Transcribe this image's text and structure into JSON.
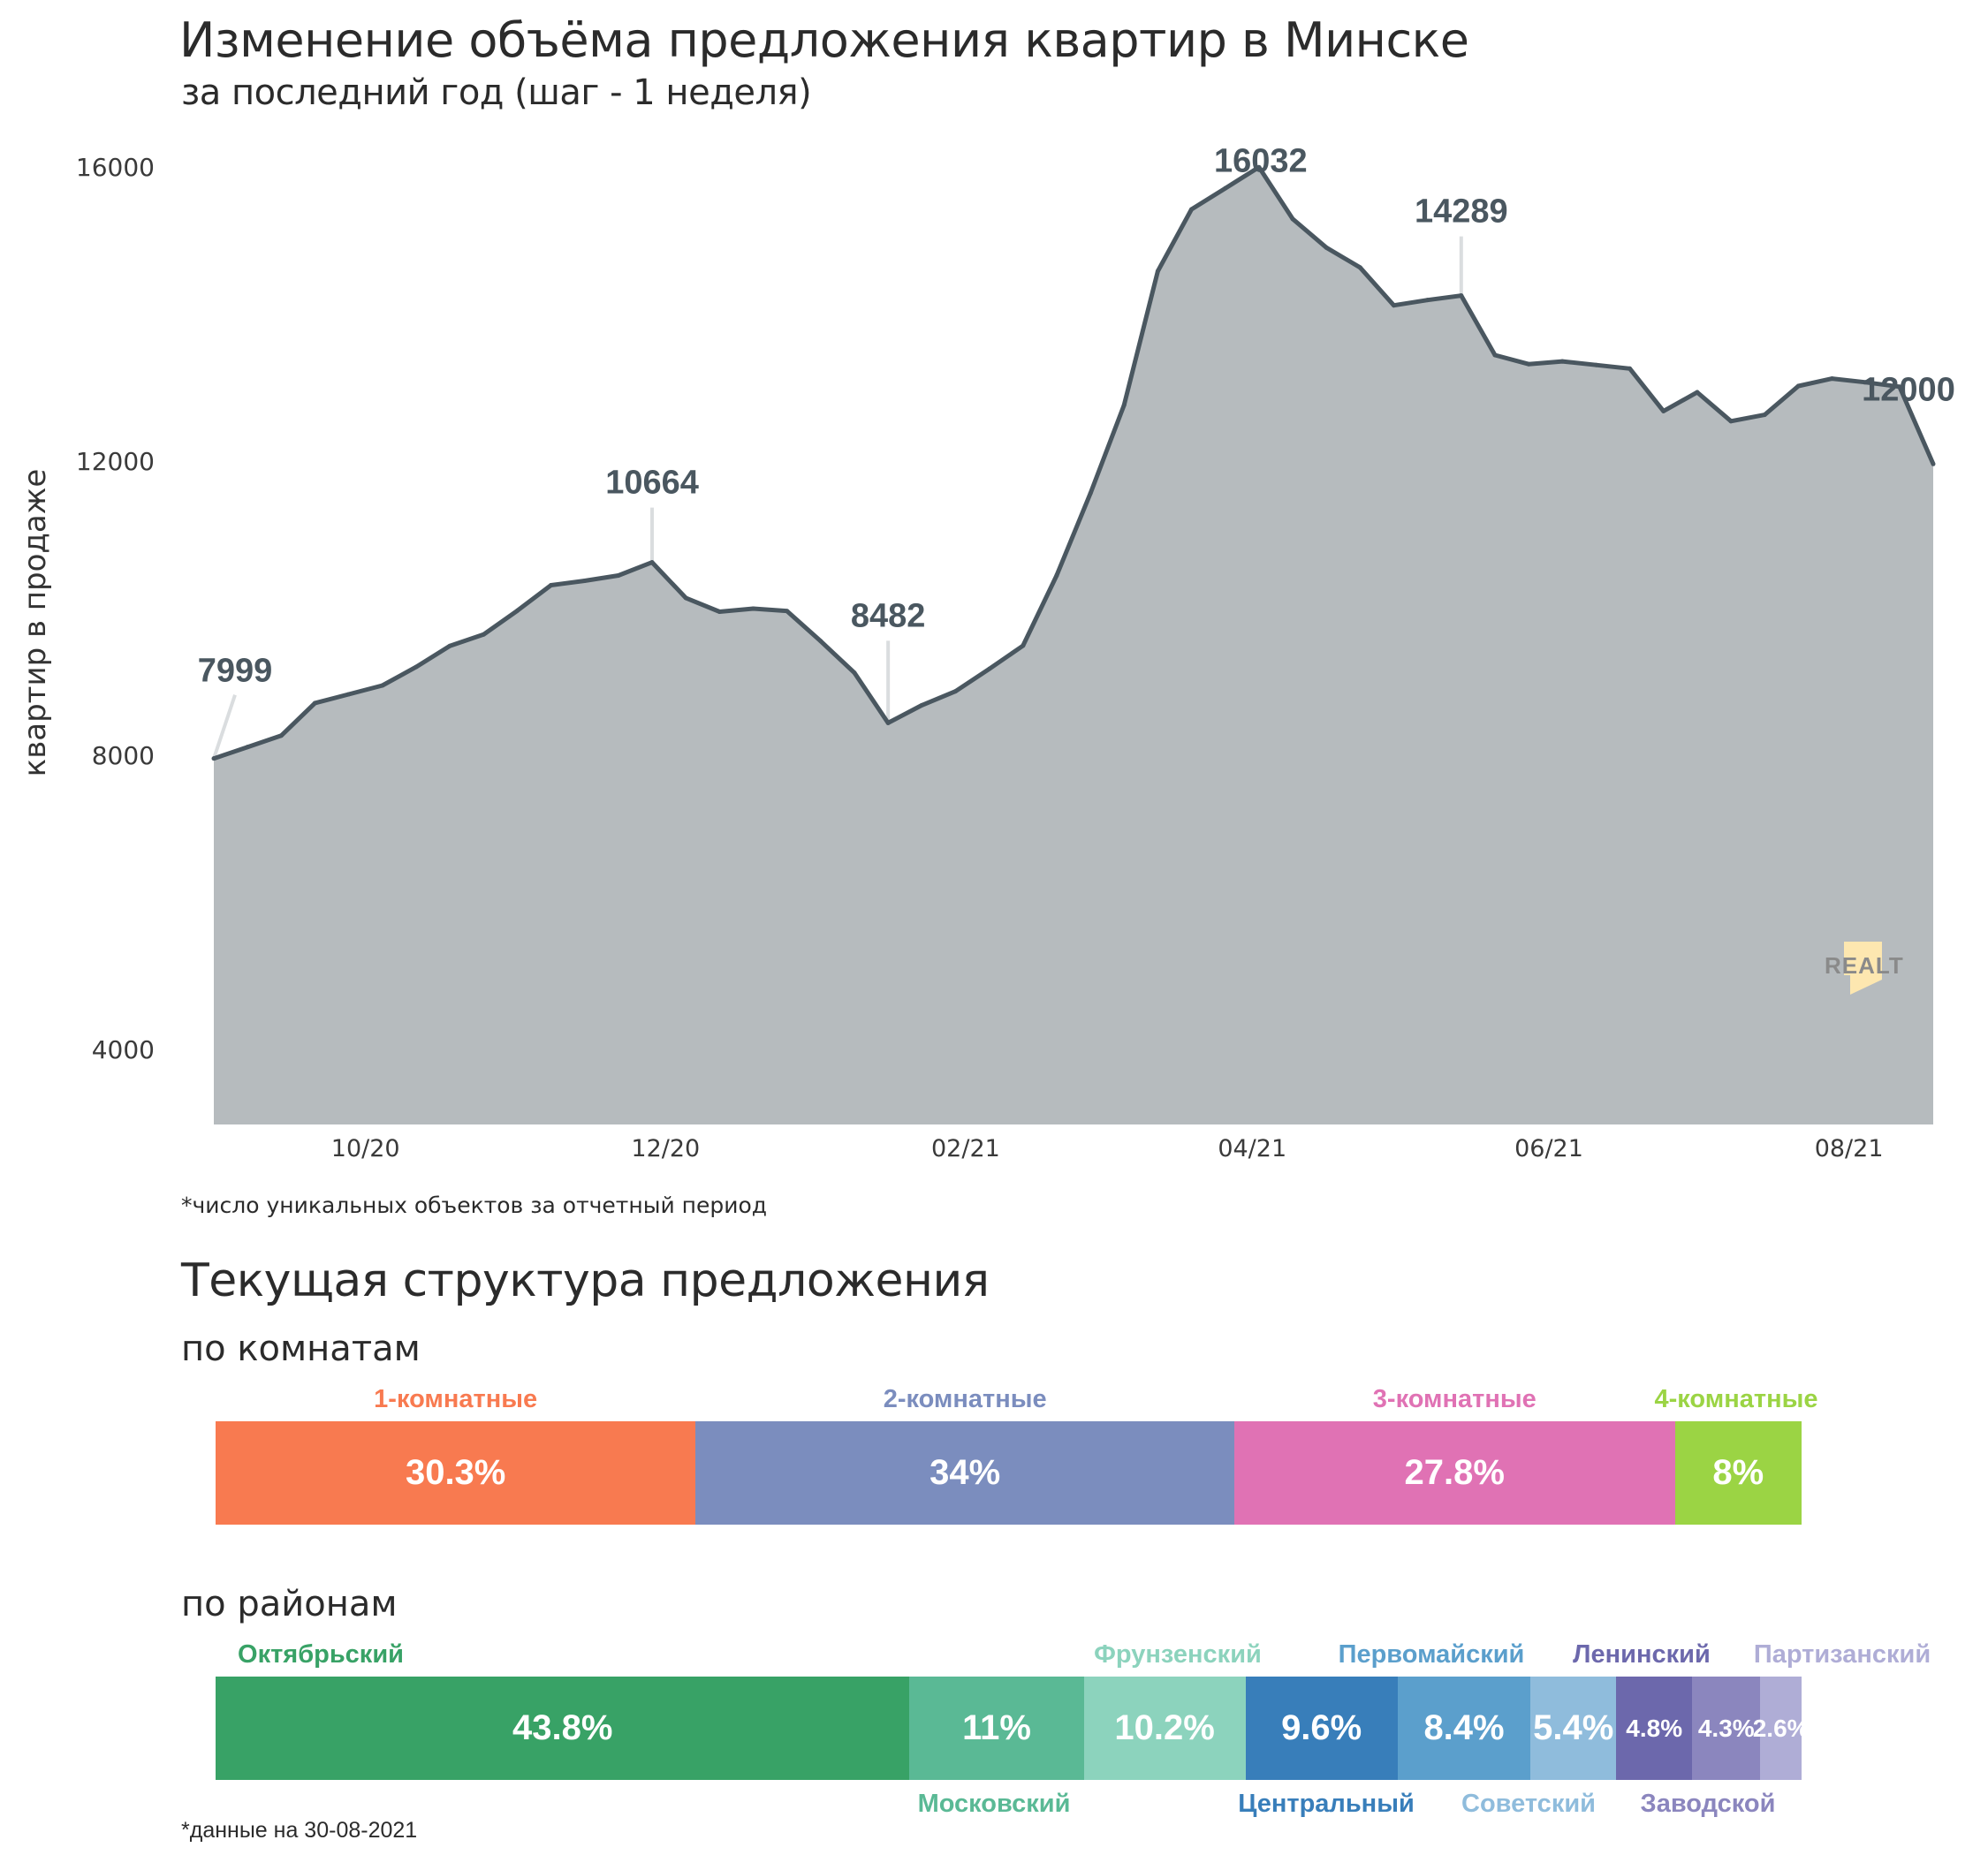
{
  "header": {
    "title": "Изменение объёма предложения квартир в Минске",
    "subtitle": "за последний год (шаг - 1 неделя)"
  },
  "chart_data": {
    "type": "area",
    "title": "Изменение объёма предложения квартир в Минске",
    "subtitle": "за последний год (шаг - 1 неделя)",
    "xlabel": "",
    "ylabel": "квартир в продаже",
    "x_unit": "week index",
    "ylim": [
      3000,
      16500
    ],
    "grid": false,
    "y_ticks": [
      {
        "value": 16000,
        "label": "16000"
      },
      {
        "value": 12000,
        "label": "12000"
      },
      {
        "value": 8000,
        "label": "8000"
      },
      {
        "value": 4000,
        "label": "4000"
      }
    ],
    "x_ticks": [
      {
        "x": 4.5,
        "label": "10/20"
      },
      {
        "x": 13.4,
        "label": "12/20"
      },
      {
        "x": 22.3,
        "label": "02/21"
      },
      {
        "x": 30.8,
        "label": "04/21"
      },
      {
        "x": 39.6,
        "label": "06/21"
      },
      {
        "x": 48.5,
        "label": "08/21"
      }
    ],
    "values": [
      7999,
      8155,
      8310,
      8752,
      8871,
      8991,
      9242,
      9529,
      9684,
      10007,
      10353,
      10413,
      10485,
      10664,
      10181,
      9993,
      10035,
      10003,
      9594,
      9164,
      8482,
      8723,
      8912,
      9216,
      9531,
      10486,
      11600,
      12800,
      14620,
      15460,
      15746,
      16032,
      15330,
      14940,
      14670,
      14155,
      14228,
      14289,
      13480,
      13357,
      13394,
      13345,
      13296,
      12719,
      12975,
      12582,
      12668,
      13060,
      13160,
      13110,
      13050,
      12000
    ],
    "annotations": [
      {
        "index": 0,
        "label": "7999"
      },
      {
        "index": 13,
        "label": "10664"
      },
      {
        "index": 20,
        "label": "8482"
      },
      {
        "index": 31,
        "label": "16032"
      },
      {
        "index": 37,
        "label": "14289"
      },
      {
        "index": 51,
        "label": "12000"
      }
    ],
    "line_color": "#4a5760",
    "fill_color": "#b6bbbe",
    "footnote": "*число уникальных объектов за отчетный период"
  },
  "logo": {
    "text": "REALT",
    "color": "#fde7b0"
  },
  "structure": {
    "title": "Текущая структура предложения",
    "rooms": {
      "title": "по комнатам",
      "items": [
        {
          "label": "1-комнатные",
          "pct": 30.3,
          "value_label": "30.3%",
          "color": "#f87a50"
        },
        {
          "label": "2-комнатные",
          "pct": 34,
          "value_label": "34%",
          "color": "#7b8dbe"
        },
        {
          "label": "3-комнатные",
          "pct": 27.8,
          "value_label": "27.8%",
          "color": "#e072b4"
        },
        {
          "label": "4-комнатные",
          "pct": 8,
          "value_label": "8%",
          "color": "#9bd444"
        }
      ]
    },
    "districts": {
      "title": "по районам",
      "items": [
        {
          "label": "Октябрьский",
          "pct": 43.8,
          "value_label": "43.8%",
          "color": "#38a266"
        },
        {
          "label": "Московский",
          "pct": 11,
          "value_label": "11%",
          "color": "#5ab995"
        },
        {
          "label": "Фрунзенский",
          "pct": 10.2,
          "value_label": "10.2%",
          "color": "#8cd3bd"
        },
        {
          "label": "Центральный",
          "pct": 9.6,
          "value_label": "9.6%",
          "color": "#387eba"
        },
        {
          "label": "Первомайский",
          "pct": 8.4,
          "value_label": "8.4%",
          "color": "#5b9fcc"
        },
        {
          "label": "Советский",
          "pct": 5.4,
          "value_label": "5.4%",
          "color": "#8fbcdc"
        },
        {
          "label": "Ленинский",
          "pct": 4.8,
          "value_label": "4.8%",
          "color": "#6c68ac"
        },
        {
          "label": "Заводской",
          "pct": 4.3,
          "value_label": "4.3%",
          "color": "#8b86be"
        },
        {
          "label": "Партизанский",
          "pct": 2.6,
          "value_label": "2.6%",
          "color": "#afadd6"
        }
      ]
    },
    "date_note": "*данные на 30-08-2021"
  }
}
